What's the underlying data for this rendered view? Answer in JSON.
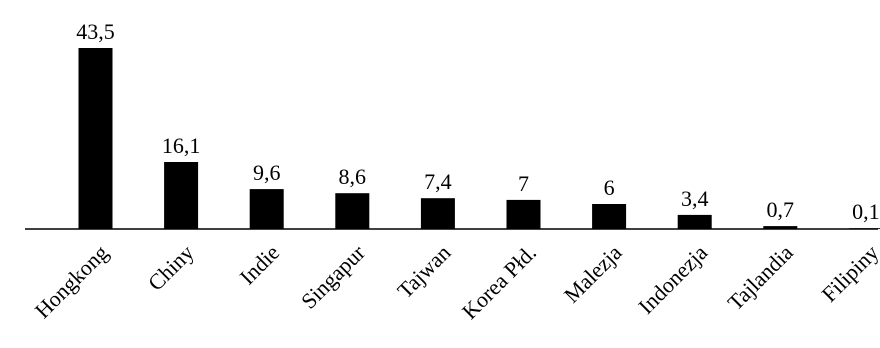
{
  "chart_data": {
    "type": "bar",
    "title": "",
    "xlabel": "",
    "ylabel": "",
    "categories": [
      "Hongkong",
      "Chiny",
      "Indie",
      "Singapur",
      "Tajwan",
      "Korea Płd.",
      "Malezja",
      "Indonezja",
      "Tajlandia",
      "Filipiny"
    ],
    "values": [
      43.5,
      16.1,
      9.6,
      8.6,
      7.4,
      7,
      6,
      3.4,
      0.7,
      0.1
    ],
    "value_labels": [
      "43,5",
      "16,1",
      "9,6",
      "8,6",
      "7,4",
      "7",
      "6",
      "3,4",
      "0,7",
      "0,1"
    ],
    "ylim": [
      0,
      43.5
    ],
    "grid": false,
    "bar_color": "#000000"
  }
}
